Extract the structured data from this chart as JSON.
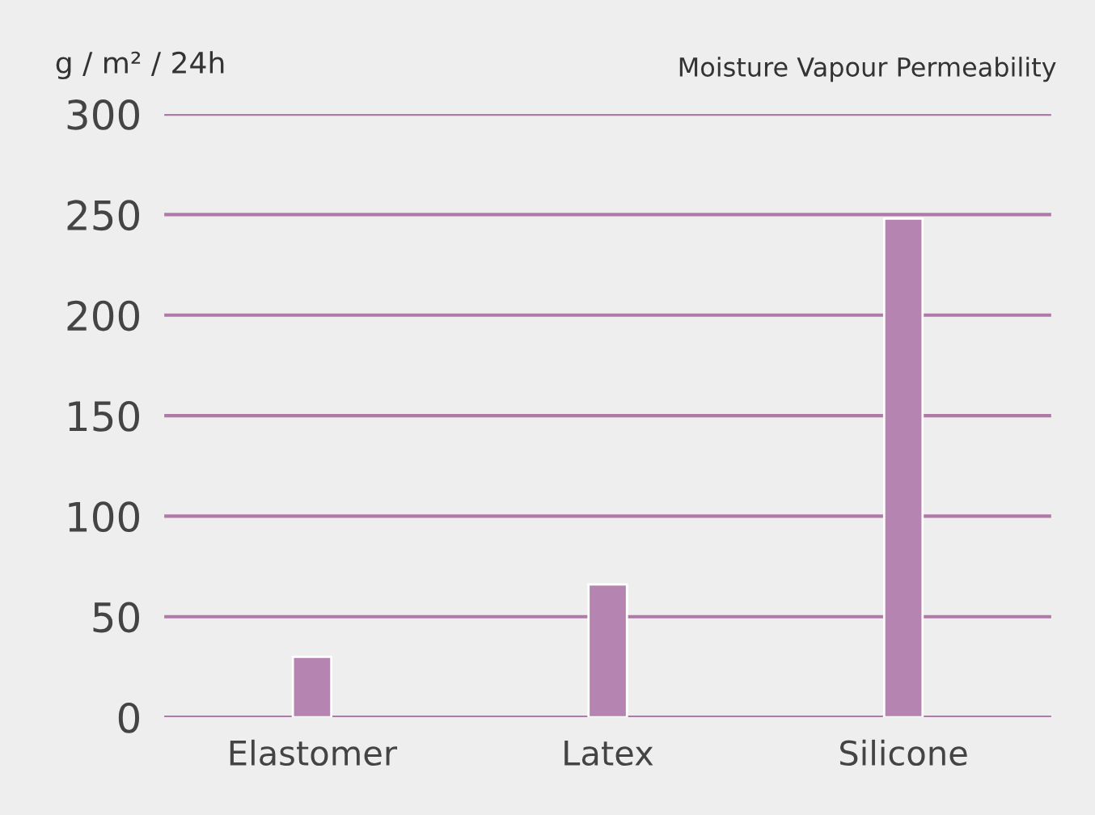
{
  "chart_data": {
    "type": "bar",
    "title": "Moisture Vapour Permeability",
    "ylabel": "g / m² / 24h",
    "categories": [
      "Elastomer",
      "Latex",
      "Silicone"
    ],
    "values": [
      30,
      66,
      248
    ],
    "color": "#b584b0",
    "ylim": [
      0,
      300
    ],
    "yticks": [
      0,
      50,
      100,
      150,
      200,
      250,
      300
    ],
    "grid": "y"
  }
}
